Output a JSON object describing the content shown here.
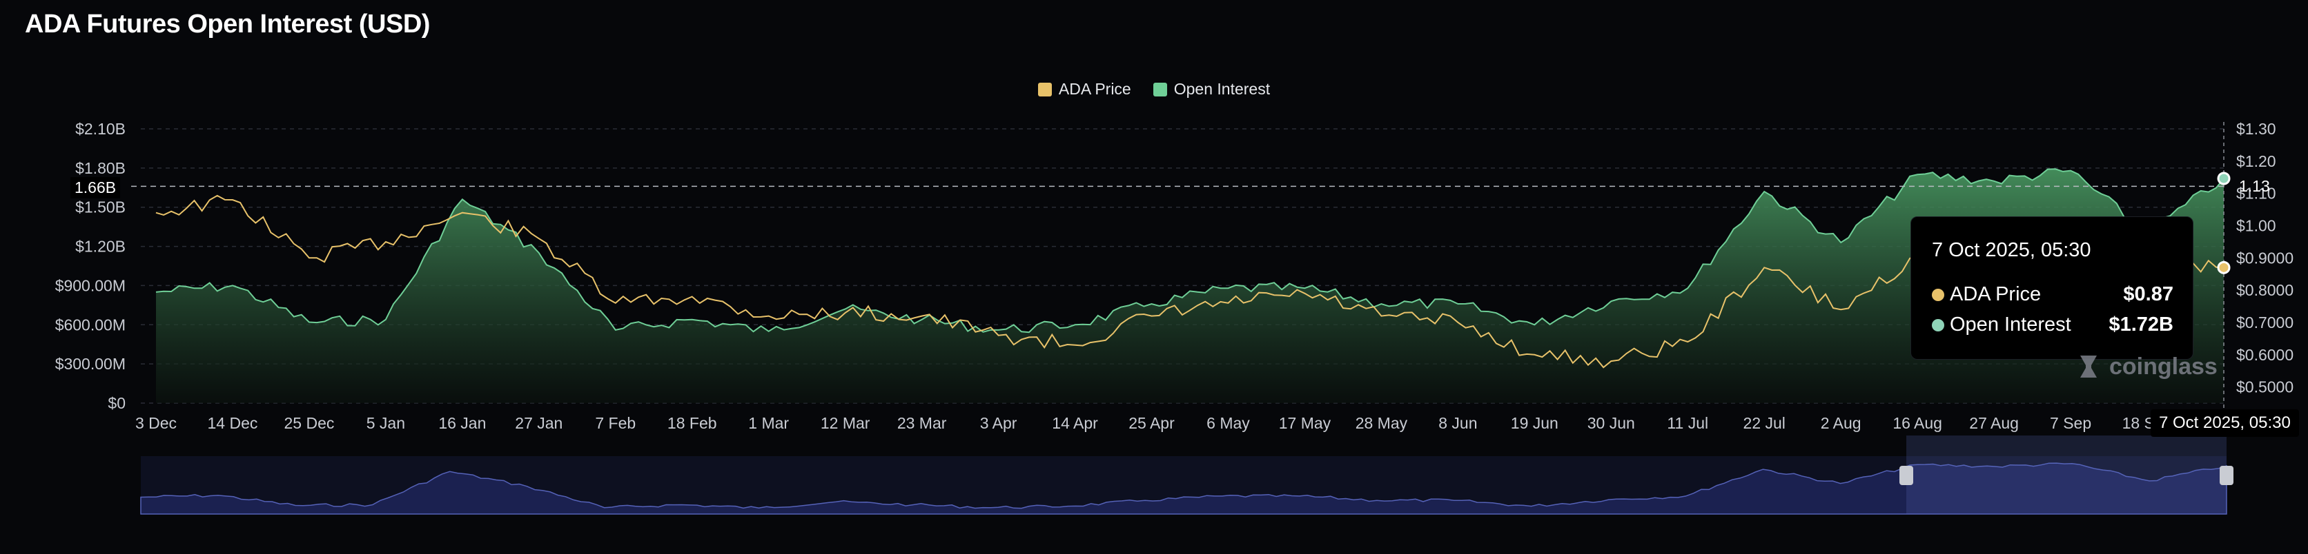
{
  "title": "ADA Futures Open Interest (USD)",
  "legend": [
    {
      "label": "ADA Price",
      "color": "#e8c26a"
    },
    {
      "label": "Open Interest",
      "color": "#6fcf97"
    }
  ],
  "colors": {
    "price": "#e8c26a",
    "oi_line": "#6fcf97",
    "oi_fill_top": "#4a9a63",
    "oi_fill_bottom": "#0b130e",
    "navigator": "#5562b8",
    "grid": "#2a2d36"
  },
  "crosshair": {
    "left_value": "1.66B",
    "right_value": "1.13",
    "date": "7 Oct 2025, 05:30"
  },
  "tooltip": {
    "title": "7 Oct 2025, 05:30",
    "rows": [
      {
        "label": "ADA Price",
        "value": "$0.87",
        "color": "#e8c26a"
      },
      {
        "label": "Open Interest",
        "value": "$1.72B",
        "color": "#8fd4b8"
      }
    ]
  },
  "watermark": "coinglass",
  "chart_data": {
    "type": "line",
    "title": "ADA Futures Open Interest (USD)",
    "categories": [
      "3 Dec",
      "14 Dec",
      "25 Dec",
      "5 Jan",
      "16 Jan",
      "27 Jan",
      "7 Feb",
      "18 Feb",
      "1 Mar",
      "12 Mar",
      "23 Mar",
      "3 Apr",
      "14 Apr",
      "25 Apr",
      "6 May",
      "17 May",
      "28 May",
      "8 Jun",
      "19 Jun",
      "30 Jun",
      "11 Jul",
      "22 Jul",
      "2 Aug",
      "16 Aug",
      "27 Aug",
      "7 Sep",
      "18 Sep",
      "7 Oct"
    ],
    "y_left": {
      "ticks": [
        "$0",
        "$300.00M",
        "$600.00M",
        "$900.00M",
        "$1.20B",
        "$1.50B",
        "$1.80B",
        "$2.10B"
      ],
      "range": [
        0,
        2100000000
      ]
    },
    "y_right": {
      "ticks": [
        "$0.5000",
        "$0.6000",
        "$0.7000",
        "$0.8000",
        "$0.9000",
        "$1.00",
        "$1.10",
        "$1.20",
        "$1.30"
      ],
      "range": [
        0.45,
        1.3
      ]
    },
    "grid": true,
    "legend_position": "top-center",
    "series": [
      {
        "name": "Open Interest",
        "axis": "left",
        "unit": "USD",
        "values": [
          850000000,
          900000000,
          620000000,
          640000000,
          1560000000,
          1150000000,
          560000000,
          640000000,
          550000000,
          720000000,
          640000000,
          560000000,
          600000000,
          760000000,
          880000000,
          880000000,
          760000000,
          760000000,
          600000000,
          780000000,
          880000000,
          1620000000,
          1230000000,
          1750000000,
          1700000000,
          1780000000,
          1300000000,
          1720000000
        ]
      },
      {
        "name": "ADA Price",
        "axis": "right",
        "unit": "USD",
        "values": [
          1.04,
          1.08,
          0.9,
          0.95,
          1.04,
          0.96,
          0.76,
          0.78,
          0.72,
          0.73,
          0.72,
          0.66,
          0.63,
          0.72,
          0.76,
          0.79,
          0.72,
          0.7,
          0.6,
          0.58,
          0.64,
          0.87,
          0.74,
          0.91,
          0.86,
          0.85,
          0.87,
          0.87
        ]
      }
    ]
  }
}
